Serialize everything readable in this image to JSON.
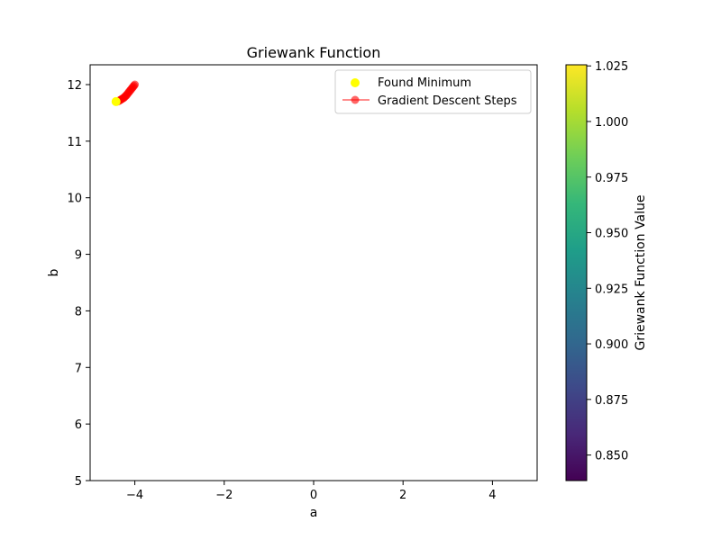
{
  "chart_data": {
    "type": "scatter",
    "title": "Griewank Function",
    "xlabel": "a",
    "ylabel": "b",
    "xlim": [
      -5,
      5
    ],
    "ylim": [
      5,
      12.35
    ],
    "xticks": [
      -4,
      -2,
      0,
      2,
      4
    ],
    "xtick_labels": [
      "−4",
      "−2",
      "0",
      "2",
      "4"
    ],
    "yticks": [
      5,
      6,
      7,
      8,
      9,
      10,
      11,
      12
    ],
    "ytick_labels": [
      "5",
      "6",
      "7",
      "8",
      "9",
      "10",
      "11",
      "12"
    ],
    "grid": false,
    "legend_position": "top-right",
    "series": [
      {
        "name": "Gradient Descent Steps",
        "kind": "line-with-markers",
        "color": "#ff0000",
        "alpha": 0.6,
        "points": [
          [
            -4.0,
            12.0
          ],
          [
            -4.02,
            11.98
          ],
          [
            -4.04,
            11.96
          ],
          [
            -4.06,
            11.94
          ],
          [
            -4.08,
            11.92
          ],
          [
            -4.1,
            11.9
          ],
          [
            -4.12,
            11.88
          ],
          [
            -4.14,
            11.86
          ],
          [
            -4.16,
            11.84
          ],
          [
            -4.18,
            11.82
          ],
          [
            -4.2,
            11.8
          ],
          [
            -4.22,
            11.79
          ],
          [
            -4.24,
            11.77
          ],
          [
            -4.26,
            11.76
          ],
          [
            -4.28,
            11.75
          ],
          [
            -4.3,
            11.74
          ],
          [
            -4.32,
            11.73
          ],
          [
            -4.34,
            11.72
          ],
          [
            -4.36,
            11.71
          ],
          [
            -4.39,
            11.7
          ]
        ]
      },
      {
        "name": "Found Minimum",
        "kind": "scatter",
        "color": "#ffff00",
        "points": [
          [
            -4.42,
            11.7
          ]
        ]
      }
    ],
    "colorbar": {
      "label": "Griewank Function Value",
      "colormap": "viridis",
      "range": [
        0.8385,
        1.0255
      ],
      "ticks": [
        0.85,
        0.875,
        0.9,
        0.925,
        0.95,
        0.975,
        1.0,
        1.025
      ],
      "tick_labels": [
        "0.850",
        "0.875",
        "0.900",
        "0.925",
        "0.950",
        "0.975",
        "1.000",
        "1.025"
      ],
      "colors": [
        "#440154",
        "#482878",
        "#3e4989",
        "#31688e",
        "#26828e",
        "#1f9e89",
        "#35b779",
        "#6ece58",
        "#b5de2b",
        "#fde725"
      ]
    }
  }
}
